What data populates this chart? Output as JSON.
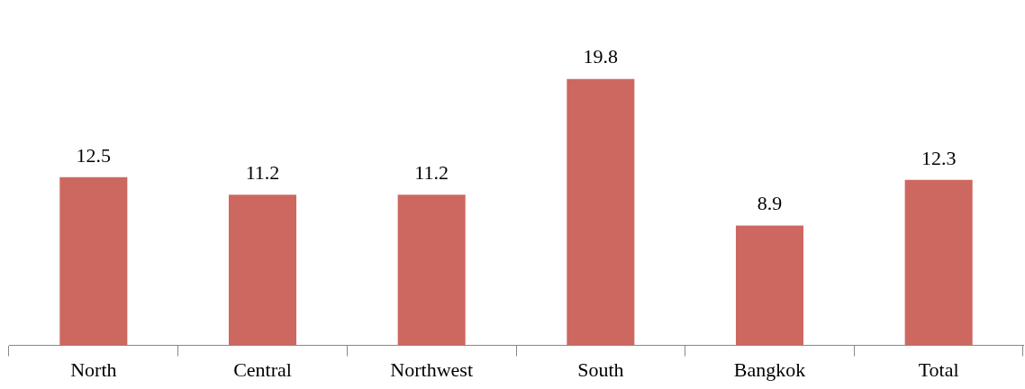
{
  "chart_data": {
    "type": "bar",
    "categories": [
      "North",
      "Central",
      "Northwest",
      "South",
      "Bangkok",
      "Total"
    ],
    "values": [
      12.5,
      11.2,
      11.2,
      19.8,
      8.9,
      12.3
    ],
    "color": "#cd6860",
    "data_labels": true,
    "grid": false,
    "legend": false
  }
}
